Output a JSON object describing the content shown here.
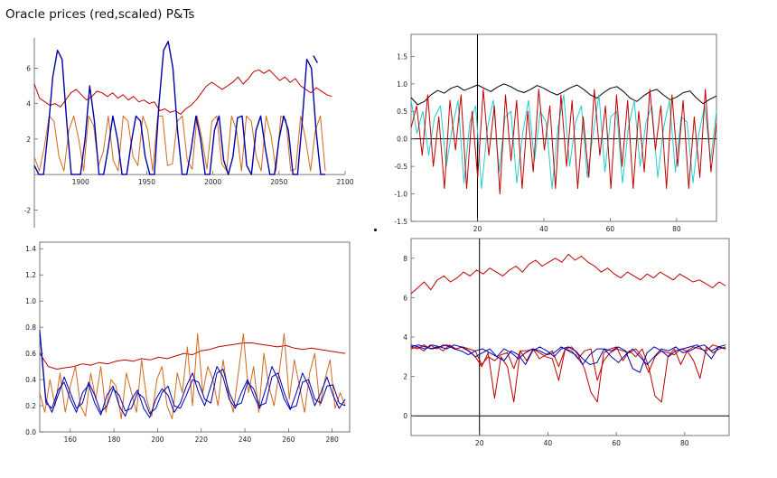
{
  "page_title": "Oracle prices (red,scaled) P&Ts",
  "colors": {
    "red": "#c00000",
    "orange": "#d2691e",
    "blue": "#0000aa",
    "cyan": "#22cccc",
    "black": "#000000"
  },
  "chart_data": [
    {
      "type": "line",
      "title": "",
      "xlim": [
        1865,
        2100
      ],
      "ylim": [
        -3,
        7.7
      ],
      "x_ticks": [
        1900,
        1950,
        2000,
        2050,
        2100
      ],
      "y_ticks": [
        -2,
        2,
        4,
        6
      ],
      "frame": "axes",
      "series": [
        {
          "color": "red",
          "x_start": 1865,
          "x_end": 2090,
          "values": [
            5.1,
            4.3,
            4.1,
            3.9,
            4.0,
            3.8,
            4.2,
            4.6,
            4.8,
            4.5,
            4.2,
            4.4,
            4.7,
            4.6,
            4.4,
            4.6,
            4.3,
            4.5,
            4.2,
            4.4,
            4.1,
            4.2,
            4.0,
            4.1,
            3.6,
            3.7,
            3.5,
            3.6,
            3.4,
            3.7,
            3.9,
            4.2,
            4.6,
            5.0,
            5.2,
            5.0,
            4.8,
            5.0,
            5.2,
            5.5,
            5.1,
            5.4,
            5.8,
            5.9,
            5.7,
            5.9,
            5.6,
            5.3,
            5.5,
            5.2,
            5.4,
            5.0,
            4.8,
            4.6,
            4.9,
            4.7,
            4.5,
            4.4
          ]
        },
        {
          "color": "orange",
          "x_start": 1865,
          "x_end": 2085,
          "values": [
            1.0,
            0.2,
            1.5,
            3.3,
            3.0,
            1.0,
            0.2,
            2.5,
            3.3,
            2.0,
            0.2,
            3.3,
            2.8,
            0.5,
            1.3,
            3.3,
            0.8,
            0.2,
            3.3,
            3.0,
            1.0,
            0.5,
            3.3,
            2.5,
            0.2,
            3.3,
            3.3,
            0.5,
            0.6,
            3.0,
            3.3,
            0.8,
            0.3,
            3.3,
            2.0,
            0.3,
            3.0,
            3.3,
            0.6,
            0.2,
            3.3,
            2.5,
            0.2,
            3.3,
            3.0,
            1.0,
            0.2,
            3.3,
            2.2,
            0.2,
            3.3,
            3.1,
            0.2,
            0.3,
            3.3,
            2.0,
            0.2,
            2.5,
            3.3,
            0.2
          ]
        },
        {
          "color": "blue",
          "x_start": 1865,
          "x_end": 2085,
          "values": [
            0.5,
            0,
            0,
            2.5,
            5.5,
            7.0,
            6.5,
            3.0,
            0,
            0,
            0,
            2.0,
            5.0,
            3.0,
            0,
            0,
            1.5,
            3.3,
            2.0,
            0,
            0,
            1.8,
            3.3,
            3.0,
            1.0,
            0,
            0,
            4.0,
            7.0,
            7.5,
            6.0,
            2.5,
            0,
            0,
            1.5,
            3.3,
            2.0,
            0,
            0,
            2.5,
            3.3,
            0.8,
            0,
            1.0,
            3.2,
            3.3,
            0.5,
            0,
            2.5,
            3.3,
            1.5,
            0,
            0,
            2.0,
            3.3,
            2.5,
            0,
            0,
            3.0,
            6.5,
            6.0,
            2.5,
            0,
            0
          ]
        },
        {
          "color": "blue",
          "x_start": 2076,
          "x_end": 2079,
          "values": [
            6.7,
            6.3
          ]
        }
      ]
    },
    {
      "type": "line",
      "title": "",
      "xlim": [
        0,
        92
      ],
      "ylim": [
        -1.5,
        1.9
      ],
      "x_ticks": [
        20,
        40,
        60,
        80
      ],
      "y_ticks": [
        -1.5,
        -1.0,
        -0.5,
        0.0,
        0.5,
        1.0,
        1.5
      ],
      "frame": "box",
      "series": [
        {
          "color": "black",
          "x_start": 0,
          "x_end": 92,
          "values": [
            0.75,
            0.62,
            0.68,
            0.8,
            0.88,
            0.83,
            0.92,
            0.96,
            0.88,
            0.93,
            0.98,
            0.92,
            0.86,
            0.94,
            1.0,
            0.95,
            0.88,
            0.84,
            0.9,
            0.97,
            0.92,
            0.85,
            0.8,
            0.86,
            0.93,
            0.98,
            0.9,
            0.8,
            0.74,
            0.84,
            0.92,
            0.95,
            0.86,
            0.74,
            0.68,
            0.78,
            0.86,
            0.9,
            0.8,
            0.71,
            0.76,
            0.84,
            0.87,
            0.74,
            0.64,
            0.72,
            0.78
          ]
        },
        {
          "color": "cyan",
          "x_start": 0,
          "x_end": 92,
          "values": [
            0.7,
            0.1,
            0.5,
            -0.3,
            0.4,
            0.6,
            -0.5,
            0.2,
            0.7,
            -0.8,
            0.3,
            0.6,
            -0.9,
            0.2,
            0.7,
            -0.6,
            0.4,
            0.5,
            -0.8,
            0.1,
            0.7,
            -0.4,
            0.5,
            0.3,
            -0.9,
            0.2,
            0.8,
            -0.5,
            0.3,
            0.6,
            -0.7,
            0.1,
            0.8,
            -0.6,
            0.4,
            0.5,
            -0.8,
            0.2,
            0.7,
            -0.5,
            0.3,
            0.6,
            -0.7,
            0.2,
            0.7,
            -0.6,
            0.4,
            0.3,
            -0.8,
            0.1,
            0.6,
            -0.4,
            0.5
          ]
        },
        {
          "color": "red",
          "x_start": 0,
          "x_end": 92,
          "values": [
            0.2,
            0.6,
            -0.3,
            0.8,
            -0.5,
            0.4,
            -0.9,
            0.7,
            -0.2,
            0.8,
            -0.9,
            0.5,
            -0.7,
            0.9,
            -0.3,
            0.6,
            -1.0,
            0.8,
            -0.4,
            0.7,
            -0.9,
            0.5,
            -0.6,
            0.9,
            -0.2,
            0.6,
            -0.9,
            0.8,
            -0.5,
            0.7,
            -0.9,
            0.4,
            -0.7,
            0.9,
            -0.3,
            0.6,
            -0.9,
            0.8,
            -0.5,
            0.7,
            -0.9,
            0.5,
            -0.6,
            0.9,
            -0.2,
            0.6,
            -0.9,
            0.8,
            -0.5,
            0.7,
            -0.9,
            0.4,
            -0.7,
            0.9,
            -0.6,
            0.3
          ]
        }
      ],
      "reference_lines": {
        "vertical_x": 20,
        "horizontal_y": 0
      }
    },
    {
      "type": "line",
      "title": "",
      "xlim": [
        146,
        288
      ],
      "ylim": [
        0,
        1.45
      ],
      "x_ticks": [
        160,
        180,
        200,
        220,
        240,
        260,
        280
      ],
      "y_ticks": [
        0.0,
        0.2,
        0.4,
        0.6,
        0.8,
        1.0,
        1.2,
        1.4
      ],
      "frame": "box",
      "series": [
        {
          "color": "red",
          "x_start": 146,
          "x_end": 286,
          "values": [
            0.6,
            0.5,
            0.48,
            0.49,
            0.5,
            0.52,
            0.51,
            0.53,
            0.52,
            0.54,
            0.55,
            0.54,
            0.56,
            0.55,
            0.57,
            0.56,
            0.58,
            0.6,
            0.59,
            0.62,
            0.63,
            0.65,
            0.66,
            0.67,
            0.68,
            0.68,
            0.67,
            0.66,
            0.65,
            0.66,
            0.64,
            0.63,
            0.64,
            0.63,
            0.62,
            0.61,
            0.6
          ]
        },
        {
          "color": "orange",
          "x_start": 146,
          "x_end": 286,
          "values": [
            0.3,
            0.15,
            0.4,
            0.2,
            0.45,
            0.15,
            0.35,
            0.5,
            0.2,
            0.12,
            0.45,
            0.25,
            0.5,
            0.15,
            0.4,
            0.35,
            0.1,
            0.45,
            0.3,
            0.15,
            0.55,
            0.25,
            0.12,
            0.4,
            0.5,
            0.2,
            0.1,
            0.45,
            0.3,
            0.65,
            0.2,
            0.75,
            0.3,
            0.5,
            0.4,
            0.2,
            0.55,
            0.3,
            0.15,
            0.45,
            0.75,
            0.3,
            0.5,
            0.15,
            0.6,
            0.35,
            0.2,
            0.45,
            0.75,
            0.25,
            0.55,
            0.35,
            0.15,
            0.45,
            0.6,
            0.2,
            0.4,
            0.55,
            0.18,
            0.3,
            0.2
          ]
        },
        {
          "color": "blue",
          "x_start": 146,
          "x_end": 286,
          "values": [
            0.75,
            0.22,
            0.18,
            0.32,
            0.38,
            0.25,
            0.15,
            0.3,
            0.36,
            0.22,
            0.13,
            0.28,
            0.35,
            0.2,
            0.12,
            0.25,
            0.32,
            0.18,
            0.11,
            0.25,
            0.33,
            0.28,
            0.15,
            0.22,
            0.35,
            0.45,
            0.3,
            0.2,
            0.35,
            0.5,
            0.42,
            0.25,
            0.18,
            0.3,
            0.4,
            0.28,
            0.18,
            0.33,
            0.5,
            0.4,
            0.25,
            0.17,
            0.3,
            0.45,
            0.35,
            0.2,
            0.3,
            0.42,
            0.28,
            0.18,
            0.25
          ]
        },
        {
          "color": "blue",
          "x_start": 146,
          "x_end": 286,
          "values": [
            0.78,
            0.25,
            0.15,
            0.28,
            0.42,
            0.3,
            0.18,
            0.22,
            0.38,
            0.28,
            0.15,
            0.2,
            0.33,
            0.28,
            0.16,
            0.18,
            0.3,
            0.26,
            0.14,
            0.18,
            0.3,
            0.35,
            0.2,
            0.18,
            0.28,
            0.4,
            0.38,
            0.25,
            0.22,
            0.45,
            0.48,
            0.3,
            0.2,
            0.22,
            0.38,
            0.33,
            0.2,
            0.22,
            0.42,
            0.45,
            0.3,
            0.18,
            0.2,
            0.38,
            0.4,
            0.25,
            0.22,
            0.35,
            0.36,
            0.22,
            0.2
          ]
        }
      ]
    },
    {
      "type": "line",
      "title": "",
      "xlim": [
        0,
        93
      ],
      "ylim": [
        -1,
        9
      ],
      "x_ticks": [
        20,
        40,
        60,
        80
      ],
      "y_ticks": [
        0,
        2,
        4,
        6,
        8
      ],
      "frame": "box",
      "series": [
        {
          "color": "red",
          "x_start": 0,
          "x_end": 92,
          "values": [
            6.2,
            6.5,
            6.8,
            6.4,
            6.9,
            7.1,
            6.8,
            7.0,
            7.3,
            7.1,
            7.4,
            7.2,
            7.5,
            7.3,
            7.1,
            7.4,
            7.6,
            7.3,
            7.7,
            7.9,
            7.6,
            7.8,
            8.0,
            7.8,
            8.2,
            7.9,
            8.1,
            7.8,
            7.6,
            7.3,
            7.5,
            7.2,
            7.0,
            7.3,
            7.1,
            6.9,
            7.2,
            7.0,
            7.3,
            7.1,
            6.9,
            7.2,
            7.0,
            6.8,
            6.9,
            6.7,
            6.5,
            6.8,
            6.6
          ]
        },
        {
          "color": "red",
          "x_start": 0,
          "x_end": 92,
          "values": [
            3.4,
            3.5,
            3.3,
            3.6,
            3.4,
            3.6,
            3.5,
            3.4,
            3.5,
            3.3,
            3.0,
            2.5,
            3.2,
            0.9,
            3.0,
            2.5,
            0.7,
            3.3,
            2.8,
            3.4,
            2.9,
            3.1,
            3.3,
            2.5,
            3.4,
            3.5,
            3.1,
            2.4,
            1.2,
            0.7,
            3.2,
            3.4,
            3.5,
            2.8,
            3.3,
            3.0,
            3.4,
            2.5,
            1.0,
            0.7,
            3.0,
            3.4,
            2.6,
            3.3,
            2.8,
            1.9,
            3.5,
            3.2,
            3.4,
            3.5
          ]
        },
        {
          "color": "red",
          "x_start": 0,
          "x_end": 92,
          "values": [
            3.5,
            3.4,
            3.6,
            3.4,
            3.5,
            3.3,
            3.6,
            3.4,
            3.5,
            3.4,
            3.3,
            2.6,
            3.0,
            2.8,
            3.1,
            3.2,
            2.4,
            3.3,
            3.3,
            3.4,
            3.2,
            3.0,
            2.9,
            1.8,
            3.4,
            3.3,
            2.9,
            3.3,
            3.4,
            1.8,
            2.8,
            3.2,
            3.4,
            3.3,
            3.2,
            3.4,
            3.0,
            2.2,
            3.0,
            3.3,
            3.2,
            3.1,
            3.4,
            3.3,
            3.5,
            3.4,
            3.3,
            3.6,
            3.5,
            3.4
          ]
        },
        {
          "color": "blue",
          "x_start": 0,
          "x_end": 92,
          "values": [
            3.6,
            3.5,
            3.4,
            3.6,
            3.5,
            3.4,
            3.6,
            3.5,
            3.3,
            3.0,
            3.2,
            3.4,
            3.0,
            2.8,
            3.3,
            3.1,
            2.6,
            3.3,
            3.5,
            3.3,
            3.0,
            3.4,
            3.5,
            3.3,
            2.9,
            2.6,
            2.7,
            3.4,
            3.3,
            3.5,
            3.3,
            2.4,
            2.2,
            3.2,
            3.5,
            3.3,
            3.0,
            3.3,
            3.4,
            3.5,
            3.6,
            3.3,
            2.9,
            3.5,
            3.6
          ]
        },
        {
          "color": "blue",
          "x_start": 0,
          "x_end": 92,
          "values": [
            3.5,
            3.6,
            3.5,
            3.4,
            3.5,
            3.6,
            3.4,
            3.3,
            3.1,
            3.3,
            3.4,
            3.2,
            3.0,
            3.4,
            3.2,
            2.9,
            3.2,
            3.4,
            3.3,
            3.1,
            3.2,
            3.5,
            3.3,
            3.1,
            2.6,
            3.1,
            3.4,
            3.4,
            3.0,
            2.7,
            3.1,
            3.4,
            3.0,
            2.6,
            3.0,
            3.4,
            3.3,
            3.5,
            3.2,
            3.3,
            3.5,
            3.6,
            3.3,
            3.5,
            3.4
          ]
        }
      ],
      "reference_lines": {
        "vertical_x": 20,
        "horizontal_y": 0
      }
    }
  ]
}
